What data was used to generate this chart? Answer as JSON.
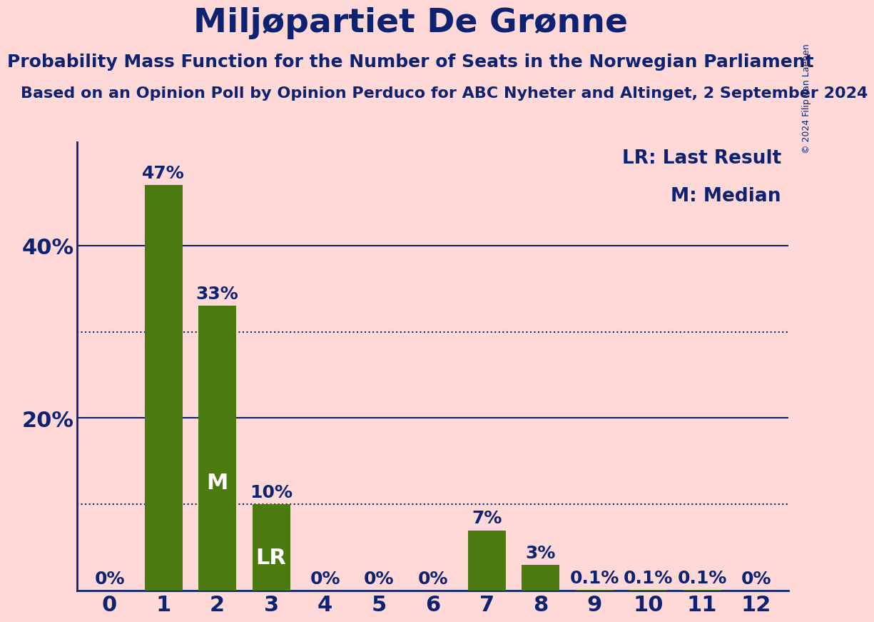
{
  "title": "Miljøpartiet De Grønne",
  "subtitle": "Probability Mass Function for the Number of Seats in the Norwegian Parliament",
  "subsubtitle": "Based on an Opinion Poll by Opinion Perduco for ABC Nyheter and Altinget, 2 September 2024",
  "copyright": "© 2024 Filip van Laenen",
  "categories": [
    0,
    1,
    2,
    3,
    4,
    5,
    6,
    7,
    8,
    9,
    10,
    11,
    12
  ],
  "values": [
    0.0,
    47.0,
    33.0,
    10.0,
    0.0,
    0.0,
    0.0,
    7.0,
    3.0,
    0.1,
    0.1,
    0.1,
    0.0
  ],
  "bar_color": "#4a7a10",
  "background_color": "#ffd8d8",
  "text_color": "#0d2270",
  "title_fontsize": 34,
  "subtitle_fontsize": 18,
  "subsubtitle_fontsize": 16,
  "bar_label_fontsize": 18,
  "tick_fontsize": 22,
  "legend_fontsize": 19,
  "ylim": [
    0,
    52
  ],
  "yticks": [
    20,
    40
  ],
  "ytick_labels": [
    "20%",
    "40%"
  ],
  "dotted_lines": [
    10,
    30
  ],
  "median_bar": 2,
  "lr_bar": 3,
  "bar_labels": [
    "0%",
    "47%",
    "33%",
    "10%",
    "0%",
    "0%",
    "0%",
    "7%",
    "3%",
    "0.1%",
    "0.1%",
    "0.1%",
    "0%"
  ],
  "legend_lr": "LR: Last Result",
  "legend_m": "M: Median",
  "inner_label_fontsize": 22
}
